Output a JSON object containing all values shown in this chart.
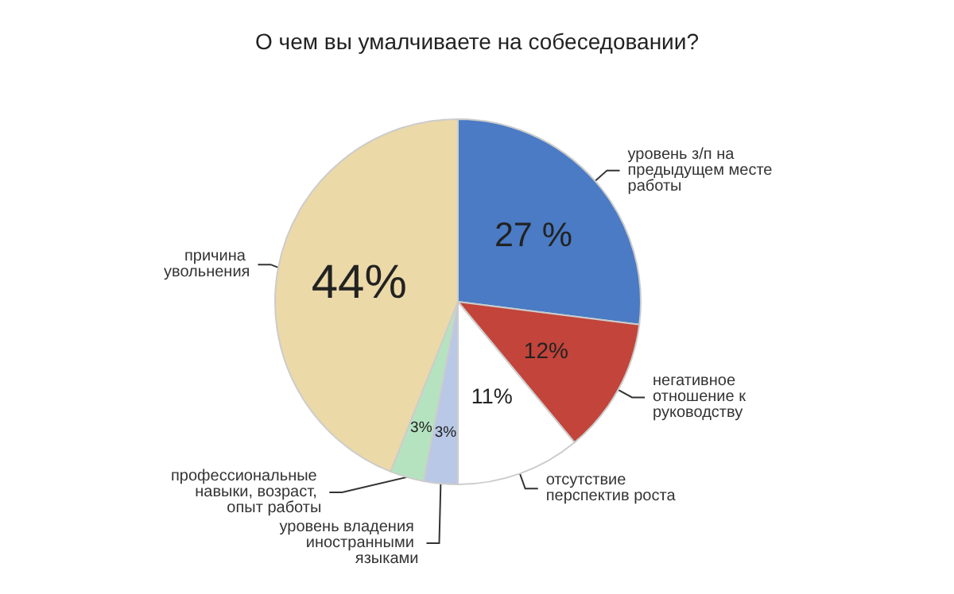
{
  "chart_data": {
    "type": "pie",
    "title": "О чем вы умалчиваете на собеседовании?",
    "categories": [
      "уровень з/п на предыдущем месте работы",
      "негативное отношение к руководству",
      "отсутствие перспектив роста",
      "уровень владения иностранными языками",
      "профессиональные навыки, возраст, опыт работы",
      "причина увольнения"
    ],
    "values": [
      27,
      12,
      11,
      3,
      3,
      44
    ],
    "value_labels": [
      "27 %",
      "12%",
      "11%",
      "3%",
      "3%",
      "44%"
    ],
    "colors": [
      "#4a7bc4",
      "#c2443a",
      "#ffffff",
      "#b8c8e6",
      "#b5e3c0",
      "#ecd9a8"
    ]
  }
}
